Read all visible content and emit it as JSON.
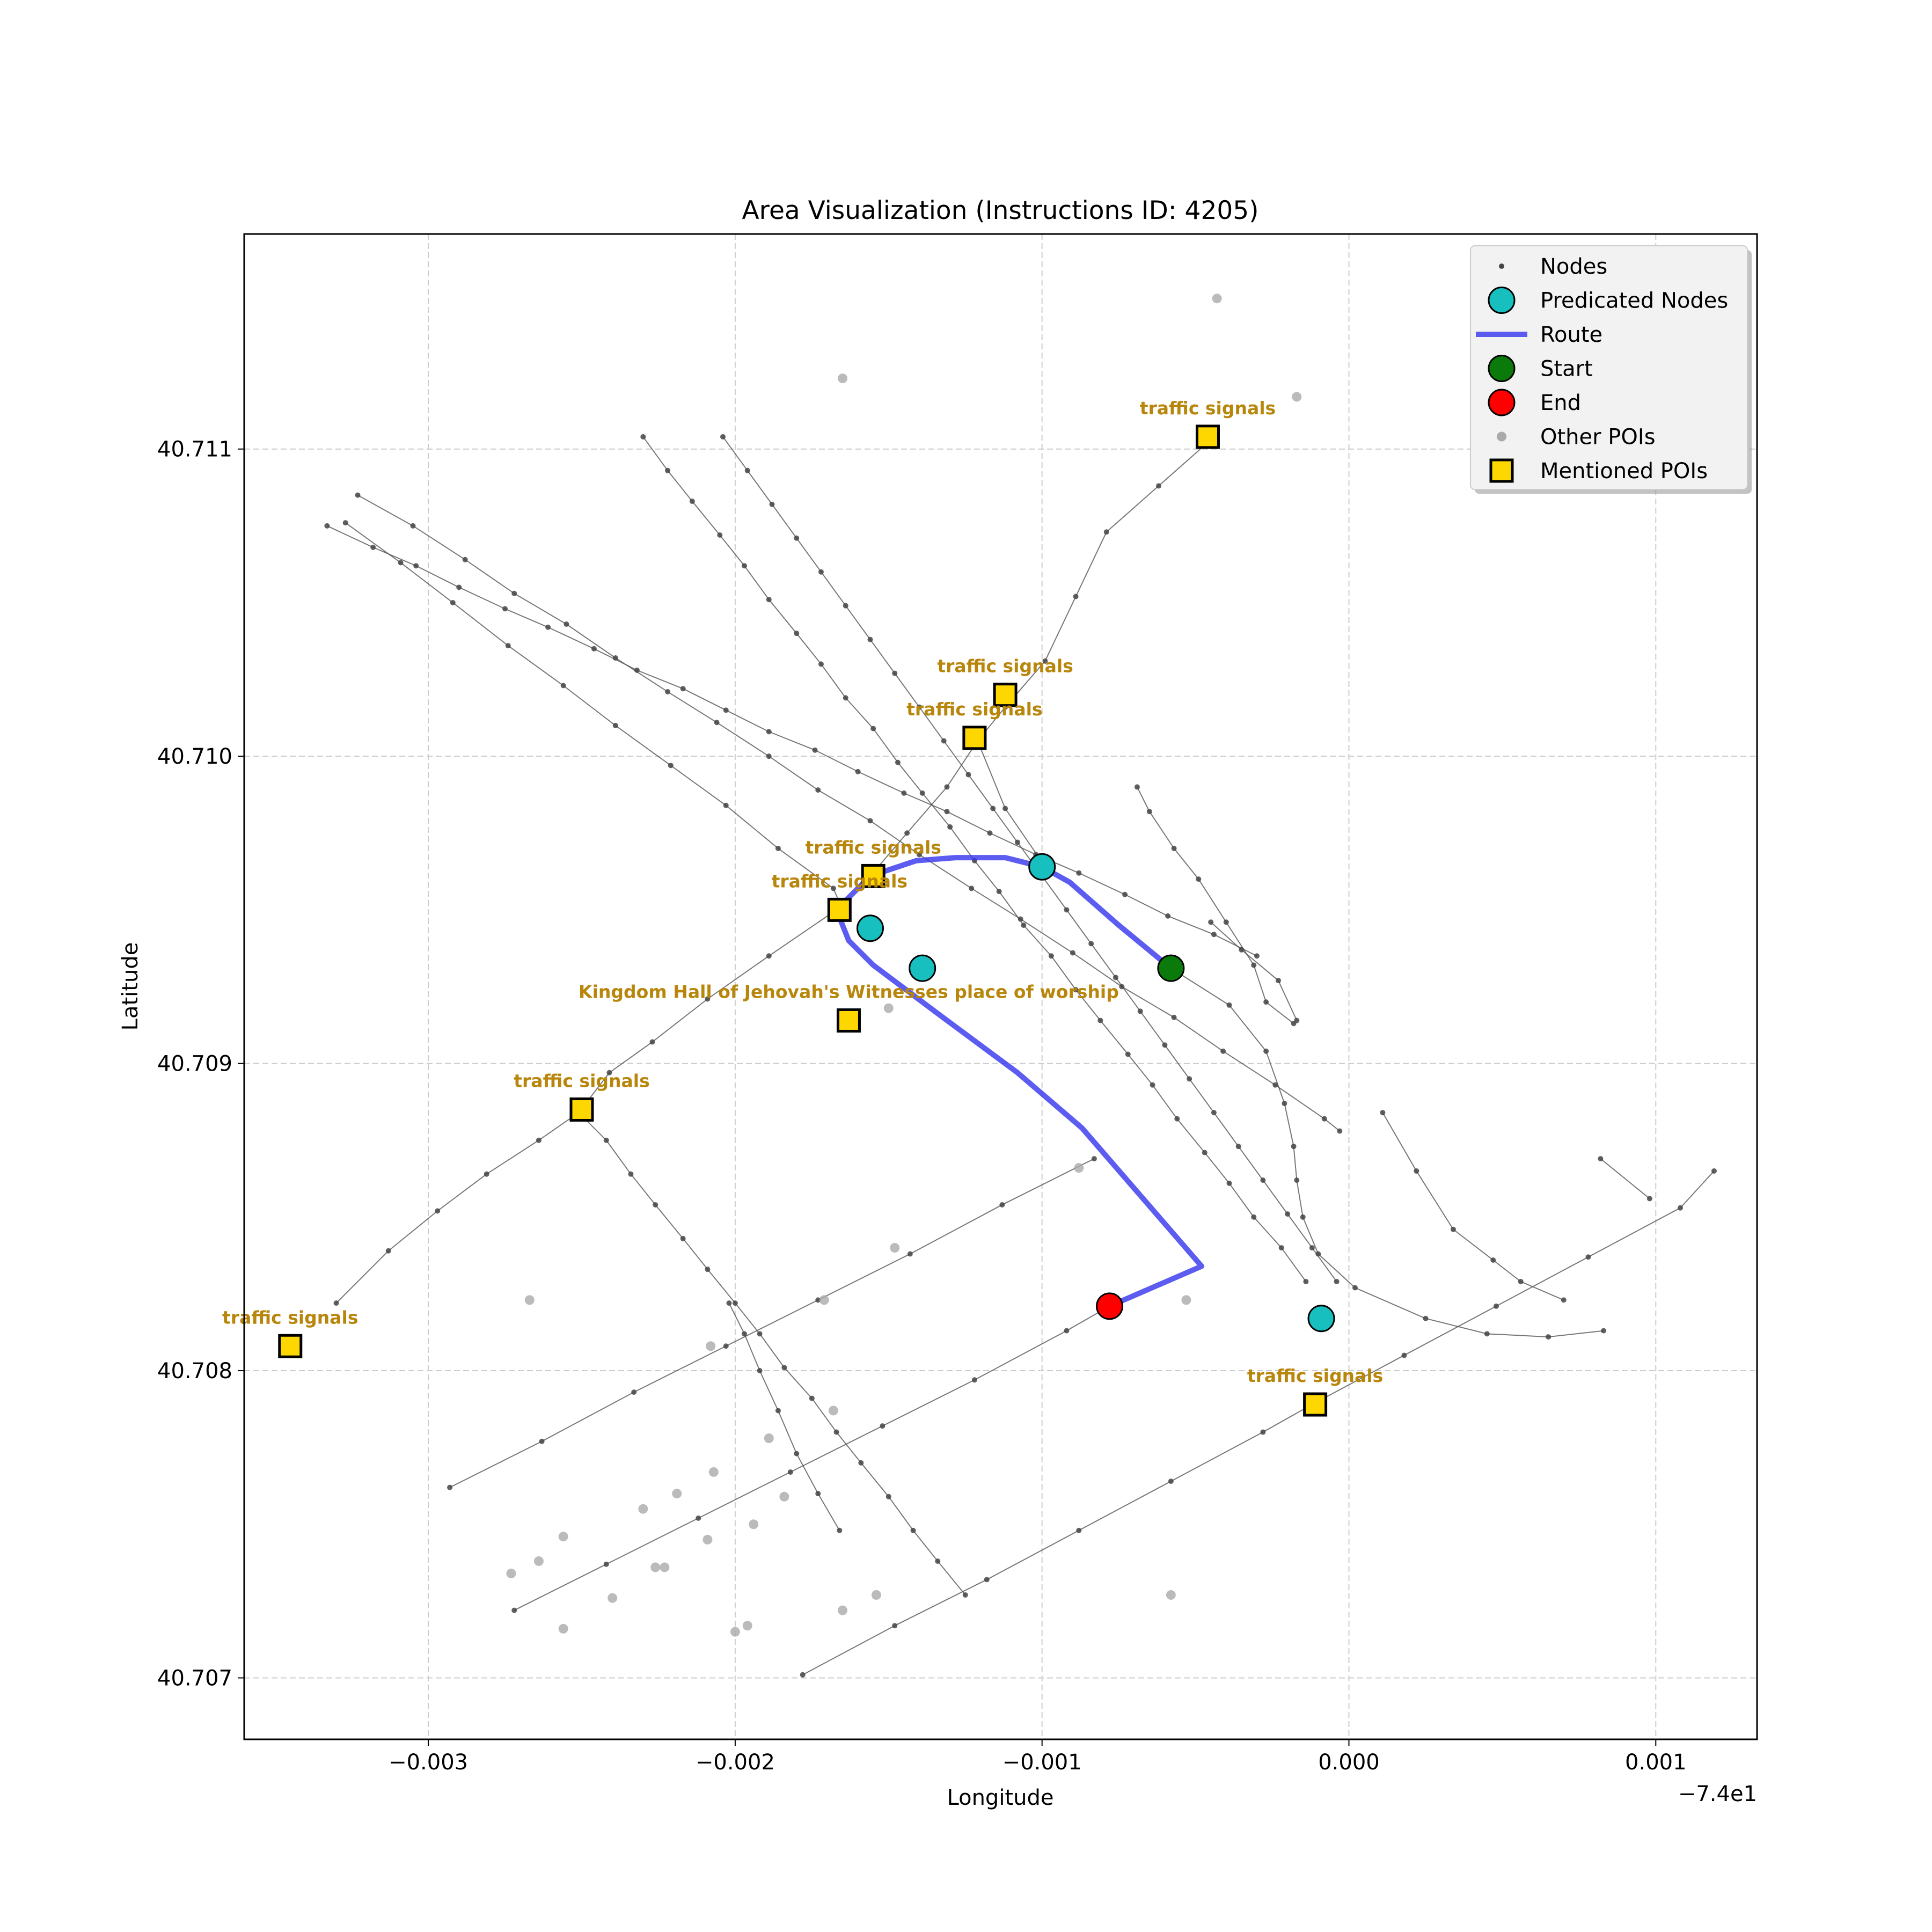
{
  "chart_data": {
    "type": "scatter",
    "title": "Area Visualization (Instructions ID: 4205)",
    "xlabel": "Longitude",
    "ylabel": "Latitude",
    "offset_label": "−7.4e1",
    "xlim": [
      -0.0036,
      0.00133
    ],
    "ylim": [
      40.7068,
      40.7117
    ],
    "xticks": [
      -0.003,
      -0.002,
      -0.001,
      0.0,
      0.001
    ],
    "xtick_labels": [
      "−0.003",
      "−0.002",
      "−0.001",
      "0.000",
      "0.001"
    ],
    "yticks": [
      40.707,
      40.708,
      40.709,
      40.71,
      40.711
    ],
    "ytick_labels": [
      "40.707",
      "40.708",
      "40.709",
      "40.710",
      "40.711"
    ],
    "grid": true,
    "legend_position": "top-right",
    "legend": [
      {
        "key": "nodes",
        "label": "Nodes"
      },
      {
        "key": "predicated",
        "label": "Predicated Nodes"
      },
      {
        "key": "route",
        "label": "Route"
      },
      {
        "key": "start",
        "label": "Start"
      },
      {
        "key": "end",
        "label": "End"
      },
      {
        "key": "other_pois",
        "label": "Other POIs"
      },
      {
        "key": "mentioned",
        "label": "Mentioned POIs"
      }
    ],
    "colors": {
      "nodes": "#444444",
      "edges": "#555555",
      "predicated": "#17bfbf",
      "route": "#3333ee",
      "start": "#0a7a0a",
      "end": "#ff0000",
      "other_pois": "#aaaaaa",
      "mentioned": "#ffd700",
      "poi_label": "#b8860b",
      "grid": "#cccccc"
    },
    "edges": [
      [
        [
          -0.00323,
          40.71085
        ],
        [
          -0.00305,
          40.71075
        ],
        [
          -0.00288,
          40.71064
        ],
        [
          -0.00272,
          40.71053
        ],
        [
          -0.00255,
          40.71043
        ],
        [
          -0.00239,
          40.71032
        ],
        [
          -0.00222,
          40.71021
        ],
        [
          -0.00206,
          40.71011
        ],
        [
          -0.00189,
          40.71
        ],
        [
          -0.00173,
          40.70989
        ],
        [
          -0.00156,
          40.70979
        ],
        [
          -0.0014,
          40.70968
        ],
        [
          -0.00123,
          40.70957
        ],
        [
          -0.00107,
          40.70947
        ],
        [
          -0.0009,
          40.70936
        ],
        [
          -0.00074,
          40.70925
        ],
        [
          -0.00057,
          40.70915
        ],
        [
          -0.00041,
          40.70904
        ],
        [
          -0.00024,
          40.70893
        ],
        [
          -8e-05,
          40.70882
        ],
        [
          -3e-05,
          40.70878
        ]
      ],
      [
        [
          -0.00327,
          40.71076
        ],
        [
          -0.00309,
          40.71063
        ],
        [
          -0.00292,
          40.7105
        ],
        [
          -0.00274,
          40.71036
        ],
        [
          -0.00256,
          40.71023
        ],
        [
          -0.00239,
          40.7101
        ],
        [
          -0.00221,
          40.70997
        ],
        [
          -0.00203,
          40.70984
        ],
        [
          -0.00186,
          40.7097
        ],
        [
          -0.00168,
          40.70957
        ],
        [
          -0.00165,
          40.7095
        ]
      ],
      [
        [
          -0.00333,
          40.71075
        ],
        [
          -0.00318,
          40.71068
        ],
        [
          -0.00304,
          40.71062
        ],
        [
          -0.0029,
          40.71055
        ],
        [
          -0.00275,
          40.71048
        ],
        [
          -0.00261,
          40.71042
        ],
        [
          -0.00246,
          40.71035
        ],
        [
          -0.00232,
          40.71028
        ],
        [
          -0.00217,
          40.71022
        ],
        [
          -0.00203,
          40.71015
        ],
        [
          -0.00189,
          40.71008
        ],
        [
          -0.00174,
          40.71002
        ],
        [
          -0.0016,
          40.70995
        ],
        [
          -0.00145,
          40.70988
        ],
        [
          -0.00131,
          40.70982
        ],
        [
          -0.00117,
          40.70975
        ],
        [
          -0.00102,
          40.70968
        ],
        [
          -0.00088,
          40.70962
        ],
        [
          -0.00073,
          40.70955
        ],
        [
          -0.00059,
          40.70948
        ],
        [
          -0.00044,
          40.70942
        ],
        [
          -0.0003,
          40.70935
        ]
      ],
      [
        [
          -0.0023,
          40.71104
        ],
        [
          -0.00222,
          40.71093
        ],
        [
          -0.00214,
          40.71083
        ],
        [
          -0.00205,
          40.71072
        ],
        [
          -0.00197,
          40.71062
        ],
        [
          -0.00189,
          40.71051
        ],
        [
          -0.0018,
          40.7104
        ],
        [
          -0.00172,
          40.7103
        ],
        [
          -0.00164,
          40.71019
        ],
        [
          -0.00155,
          40.71009
        ],
        [
          -0.00147,
          40.70998
        ],
        [
          -0.00139,
          40.70988
        ],
        [
          -0.0013,
          40.70977
        ],
        [
          -0.00122,
          40.70966
        ],
        [
          -0.00114,
          40.70956
        ],
        [
          -0.00106,
          40.70945
        ],
        [
          -0.00097,
          40.70935
        ],
        [
          -0.00089,
          40.70924
        ],
        [
          -0.00081,
          40.70914
        ],
        [
          -0.00072,
          40.70903
        ],
        [
          -0.00064,
          40.70893
        ],
        [
          -0.00056,
          40.70882
        ],
        [
          -0.00047,
          40.70871
        ],
        [
          -0.00039,
          40.70861
        ],
        [
          -0.00031,
          40.7085
        ],
        [
          -0.00022,
          40.7084
        ],
        [
          -0.00014,
          40.70829
        ]
      ],
      [
        [
          -0.00204,
          40.71104
        ],
        [
          -0.00196,
          40.71093
        ],
        [
          -0.00188,
          40.71082
        ],
        [
          -0.0018,
          40.71071
        ],
        [
          -0.00172,
          40.7106
        ],
        [
          -0.00164,
          40.71049
        ],
        [
          -0.00156,
          40.71038
        ],
        [
          -0.00148,
          40.71027
        ],
        [
          -0.0014,
          40.71016
        ],
        [
          -0.00132,
          40.71005
        ],
        [
          -0.00124,
          40.70994
        ],
        [
          -0.00116,
          40.70983
        ],
        [
          -0.00108,
          40.70972
        ],
        [
          -0.001,
          40.70961
        ],
        [
          -0.00092,
          40.7095
        ],
        [
          -0.00084,
          40.70939
        ],
        [
          -0.00076,
          40.70928
        ],
        [
          -0.00068,
          40.70917
        ],
        [
          -0.0006,
          40.70906
        ],
        [
          -0.00052,
          40.70895
        ],
        [
          -0.00044,
          40.70884
        ],
        [
          -0.00036,
          40.70873
        ],
        [
          -0.00028,
          40.70862
        ],
        [
          -0.0002,
          40.70851
        ],
        [
          -0.00012,
          40.7084
        ],
        [
          -4e-05,
          40.70829
        ]
      ],
      [
        [
          -0.00045,
          40.71103
        ],
        [
          -0.00062,
          40.71088
        ],
        [
          -0.00079,
          40.71073
        ],
        [
          -0.00089,
          40.71052
        ],
        [
          -0.00099,
          40.71031
        ],
        [
          -0.00112,
          40.71016
        ]
      ],
      [
        [
          -0.00112,
          40.71016
        ],
        [
          -0.00121,
          40.71005
        ],
        [
          -0.00131,
          40.7099
        ],
        [
          -0.00144,
          40.70975
        ],
        [
          -0.00156,
          40.70961
        ]
      ],
      [
        [
          -0.00167,
          40.7095
        ],
        [
          -0.00189,
          40.70935
        ],
        [
          -0.00209,
          40.70921
        ],
        [
          -0.00227,
          40.70907
        ],
        [
          -0.00241,
          40.70897
        ],
        [
          -0.00251,
          40.70884
        ]
      ],
      [
        [
          -0.00251,
          40.70884
        ],
        [
          -0.00264,
          40.70875
        ],
        [
          -0.00281,
          40.70864
        ],
        [
          -0.00297,
          40.70852
        ],
        [
          -0.00313,
          40.70839
        ],
        [
          -0.0033,
          40.70822
        ]
      ],
      [
        [
          -0.00251,
          40.70884
        ],
        [
          -0.00242,
          40.70875
        ],
        [
          -0.00234,
          40.70864
        ],
        [
          -0.00226,
          40.70854
        ],
        [
          -0.00217,
          40.70843
        ],
        [
          -0.00209,
          40.70833
        ],
        [
          -0.002,
          40.70822
        ],
        [
          -0.00192,
          40.70812
        ],
        [
          -0.00184,
          40.70801
        ],
        [
          -0.00175,
          40.70791
        ],
        [
          -0.00167,
          40.7078
        ],
        [
          -0.00159,
          40.7077
        ],
        [
          -0.0015,
          40.70759
        ],
        [
          -0.00142,
          40.70748
        ],
        [
          -0.00134,
          40.70738
        ],
        [
          -0.00125,
          40.70727
        ]
      ],
      [
        [
          -0.00202,
          40.70822
        ],
        [
          -0.00197,
          40.70812
        ],
        [
          -0.00192,
          40.708
        ],
        [
          -0.00186,
          40.70787
        ],
        [
          -0.0018,
          40.70773
        ],
        [
          -0.00173,
          40.7076
        ],
        [
          -0.00166,
          40.70748
        ]
      ],
      [
        [
          -0.00293,
          40.70762
        ],
        [
          -0.00263,
          40.70777
        ],
        [
          -0.00233,
          40.70793
        ],
        [
          -0.00203,
          40.70808
        ],
        [
          -0.00173,
          40.70823
        ],
        [
          -0.00143,
          40.70838
        ],
        [
          -0.00113,
          40.70854
        ],
        [
          -0.00083,
          40.70869
        ]
      ],
      [
        [
          -0.00272,
          40.70722
        ],
        [
          -0.00242,
          40.70737
        ],
        [
          -0.00212,
          40.70752
        ],
        [
          -0.00182,
          40.70767
        ],
        [
          -0.00152,
          40.70782
        ],
        [
          -0.00122,
          40.70797
        ],
        [
          -0.00092,
          40.70813
        ],
        [
          -0.00078,
          40.70821
        ]
      ],
      [
        [
          -0.00178,
          40.70701
        ],
        [
          -0.00148,
          40.70717
        ],
        [
          -0.00118,
          40.70732
        ],
        [
          -0.00088,
          40.70748
        ],
        [
          -0.00058,
          40.70764
        ],
        [
          -0.00028,
          40.7078
        ],
        [
          -0.00012,
          40.70789
        ],
        [
          0.00018,
          40.70805
        ],
        [
          0.00048,
          40.70821
        ],
        [
          0.00078,
          40.70837
        ],
        [
          0.00108,
          40.70853
        ],
        [
          0.00119,
          40.70865
        ]
      ],
      [
        [
          -0.00018,
          40.70913
        ],
        [
          -0.00027,
          40.7092
        ],
        [
          -0.00031,
          40.70932
        ],
        [
          -0.0004,
          40.70946
        ],
        [
          -0.00049,
          40.7096
        ],
        [
          -0.00057,
          40.7097
        ],
        [
          -0.00065,
          40.70982
        ],
        [
          -0.00069,
          40.7099
        ]
      ],
      [
        [
          -0.00101,
          40.70967
        ],
        [
          -0.00112,
          40.70983
        ],
        [
          -0.00121,
          40.71005
        ]
      ],
      [
        [
          -0.00017,
          40.70914
        ],
        [
          -0.00023,
          40.70927
        ],
        [
          -0.00035,
          40.70937
        ],
        [
          -0.00045,
          40.70946
        ]
      ],
      [
        [
          -0.00058,
          40.70931
        ],
        [
          -0.00039,
          40.70919
        ],
        [
          -0.00027,
          40.70904
        ],
        [
          -0.00021,
          40.70887
        ],
        [
          -0.00018,
          40.70873
        ],
        [
          -0.00017,
          40.70862
        ],
        [
          -0.00015,
          40.7085
        ],
        [
          -0.0001,
          40.70838
        ],
        [
          2e-05,
          40.70827
        ],
        [
          0.00025,
          40.70817
        ],
        [
          0.00045,
          40.70812
        ],
        [
          0.00065,
          40.70811
        ],
        [
          0.00083,
          40.70813
        ]
      ],
      [
        [
          0.00011,
          40.70884
        ],
        [
          0.00022,
          40.70865
        ],
        [
          0.00034,
          40.70846
        ],
        [
          0.00047,
          40.70836
        ],
        [
          0.00056,
          40.70829
        ],
        [
          0.0007,
          40.70823
        ]
      ],
      [
        [
          0.00082,
          40.70869
        ],
        [
          0.00098,
          40.70856
        ]
      ]
    ],
    "route": [
      [
        -0.00058,
        40.70931
      ],
      [
        -0.00075,
        40.70945
      ],
      [
        -0.00091,
        40.70959
      ],
      [
        -0.001,
        40.70964
      ],
      [
        -0.00112,
        40.70967
      ],
      [
        -0.00128,
        40.70967
      ],
      [
        -0.00141,
        40.70966
      ],
      [
        -0.00156,
        40.70961
      ],
      [
        -0.00167,
        40.7095
      ],
      [
        -0.00163,
        40.7094
      ],
      [
        -0.00155,
        40.70932
      ],
      [
        -0.00135,
        40.70917
      ],
      [
        -0.00108,
        40.70897
      ],
      [
        -0.00087,
        40.70879
      ],
      [
        -0.00048,
        40.70834
      ],
      [
        -0.00078,
        40.70821
      ]
    ],
    "predicated_nodes": [
      [
        -0.001,
        40.70964
      ],
      [
        -0.00156,
        40.70944
      ],
      [
        -0.00139,
        40.70931
      ],
      [
        -9e-05,
        40.70817
      ]
    ],
    "start": [
      -0.00058,
      40.70931
    ],
    "end": [
      -0.00078,
      40.70821
    ],
    "other_pois": [
      [
        -0.00043,
        40.71149
      ],
      [
        -0.00165,
        40.71123
      ],
      [
        -0.00017,
        40.71117
      ],
      [
        -0.0015,
        40.70918
      ],
      [
        -0.00088,
        40.70866
      ],
      [
        -0.00148,
        40.7084
      ],
      [
        -0.00267,
        40.70823
      ],
      [
        -0.00171,
        40.70823
      ],
      [
        -0.00053,
        40.70823
      ],
      [
        -0.00208,
        40.70808
      ],
      [
        -0.00168,
        40.70787
      ],
      [
        -0.00189,
        40.70778
      ],
      [
        -0.00207,
        40.70767
      ],
      [
        -0.00219,
        40.7076
      ],
      [
        -0.00184,
        40.70759
      ],
      [
        -0.0023,
        40.70755
      ],
      [
        -0.00194,
        40.7075
      ],
      [
        -0.00256,
        40.70746
      ],
      [
        -0.00209,
        40.70745
      ],
      [
        -0.00264,
        40.70738
      ],
      [
        -0.00226,
        40.70736
      ],
      [
        -0.00223,
        40.70736
      ],
      [
        -0.00273,
        40.70734
      ],
      [
        -0.00154,
        40.70727
      ],
      [
        -0.0024,
        40.70726
      ],
      [
        -0.00058,
        40.70727
      ],
      [
        -0.00165,
        40.70722
      ],
      [
        -0.00196,
        40.70717
      ],
      [
        -0.00256,
        40.70716
      ],
      [
        -0.002,
        40.70715
      ]
    ],
    "mentioned_pois": [
      {
        "x": -0.00046,
        "y": 40.71104,
        "label": "traffic signals"
      },
      {
        "x": -0.00112,
        "y": 40.7102,
        "label": "traffic signals"
      },
      {
        "x": -0.00122,
        "y": 40.71006,
        "label": "traffic signals"
      },
      {
        "x": -0.00155,
        "y": 40.70961,
        "label": "traffic signals"
      },
      {
        "x": -0.00166,
        "y": 40.7095,
        "label": "traffic signals"
      },
      {
        "x": -0.00163,
        "y": 40.70914,
        "label": "Kingdom Hall of Jehovah's Witnesses place of worship"
      },
      {
        "x": -0.0025,
        "y": 40.70885,
        "label": "traffic signals"
      },
      {
        "x": -0.00345,
        "y": 40.70808,
        "label": "traffic signals"
      },
      {
        "x": -0.00011,
        "y": 40.70789,
        "label": "traffic signals"
      }
    ]
  }
}
